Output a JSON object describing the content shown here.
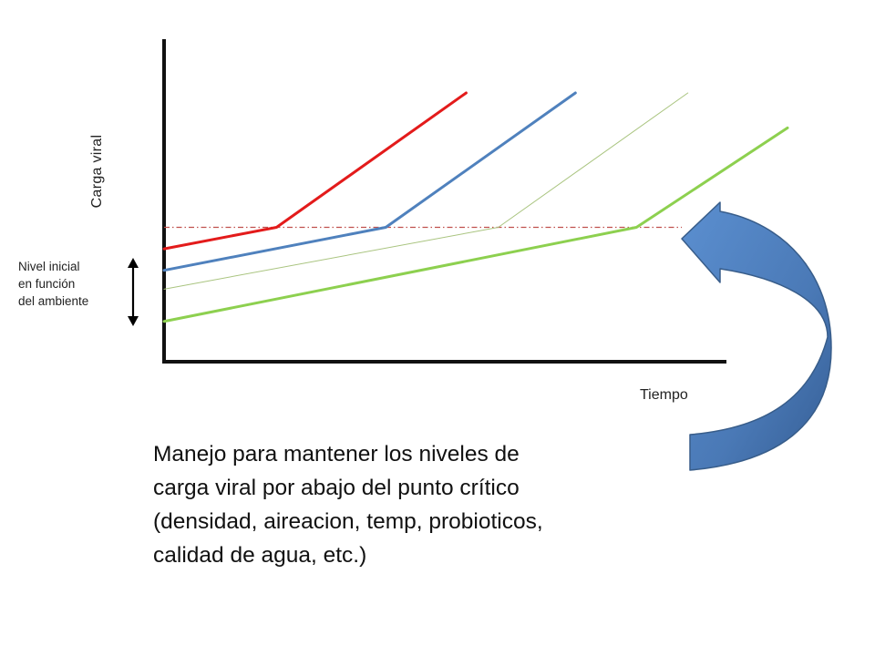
{
  "chart_data": {
    "type": "line",
    "ylabel": "Carga viral",
    "xlabel": "Tiempo",
    "range_label": [
      "Nivel inicial",
      "en función",
      "del ambiente"
    ],
    "series": [
      {
        "color": "#e31b1b",
        "points": [
          [
            0,
            42
          ],
          [
            35,
            50
          ],
          [
            94,
            100
          ]
        ]
      },
      {
        "color": "#4f81bd",
        "points": [
          [
            0,
            34
          ],
          [
            69,
            50
          ],
          [
            128,
            100
          ]
        ]
      },
      {
        "color": "#a9c47f",
        "points": [
          [
            0,
            27
          ],
          [
            104,
            50
          ],
          [
            163,
            100
          ]
        ]
      },
      {
        "color": "#8dd04f",
        "points": [
          [
            0,
            15
          ],
          [
            147,
            50
          ],
          [
            194,
            87
          ]
        ]
      }
    ],
    "critical_level": 50,
    "xlim": [
      0,
      175
    ],
    "ylim": [
      0,
      120
    ]
  },
  "caption": [
    "Manejo para mantener los niveles de",
    "carga viral por abajo del punto crítico",
    "(densidad, aireacion, temp, probioticos,",
    "calidad de agua, etc.)"
  ],
  "colors": {
    "axis": "#111111",
    "threshold": "#c0504d",
    "arrow_fill": "#4f81bd",
    "arrow_stroke": "#385d8a"
  }
}
